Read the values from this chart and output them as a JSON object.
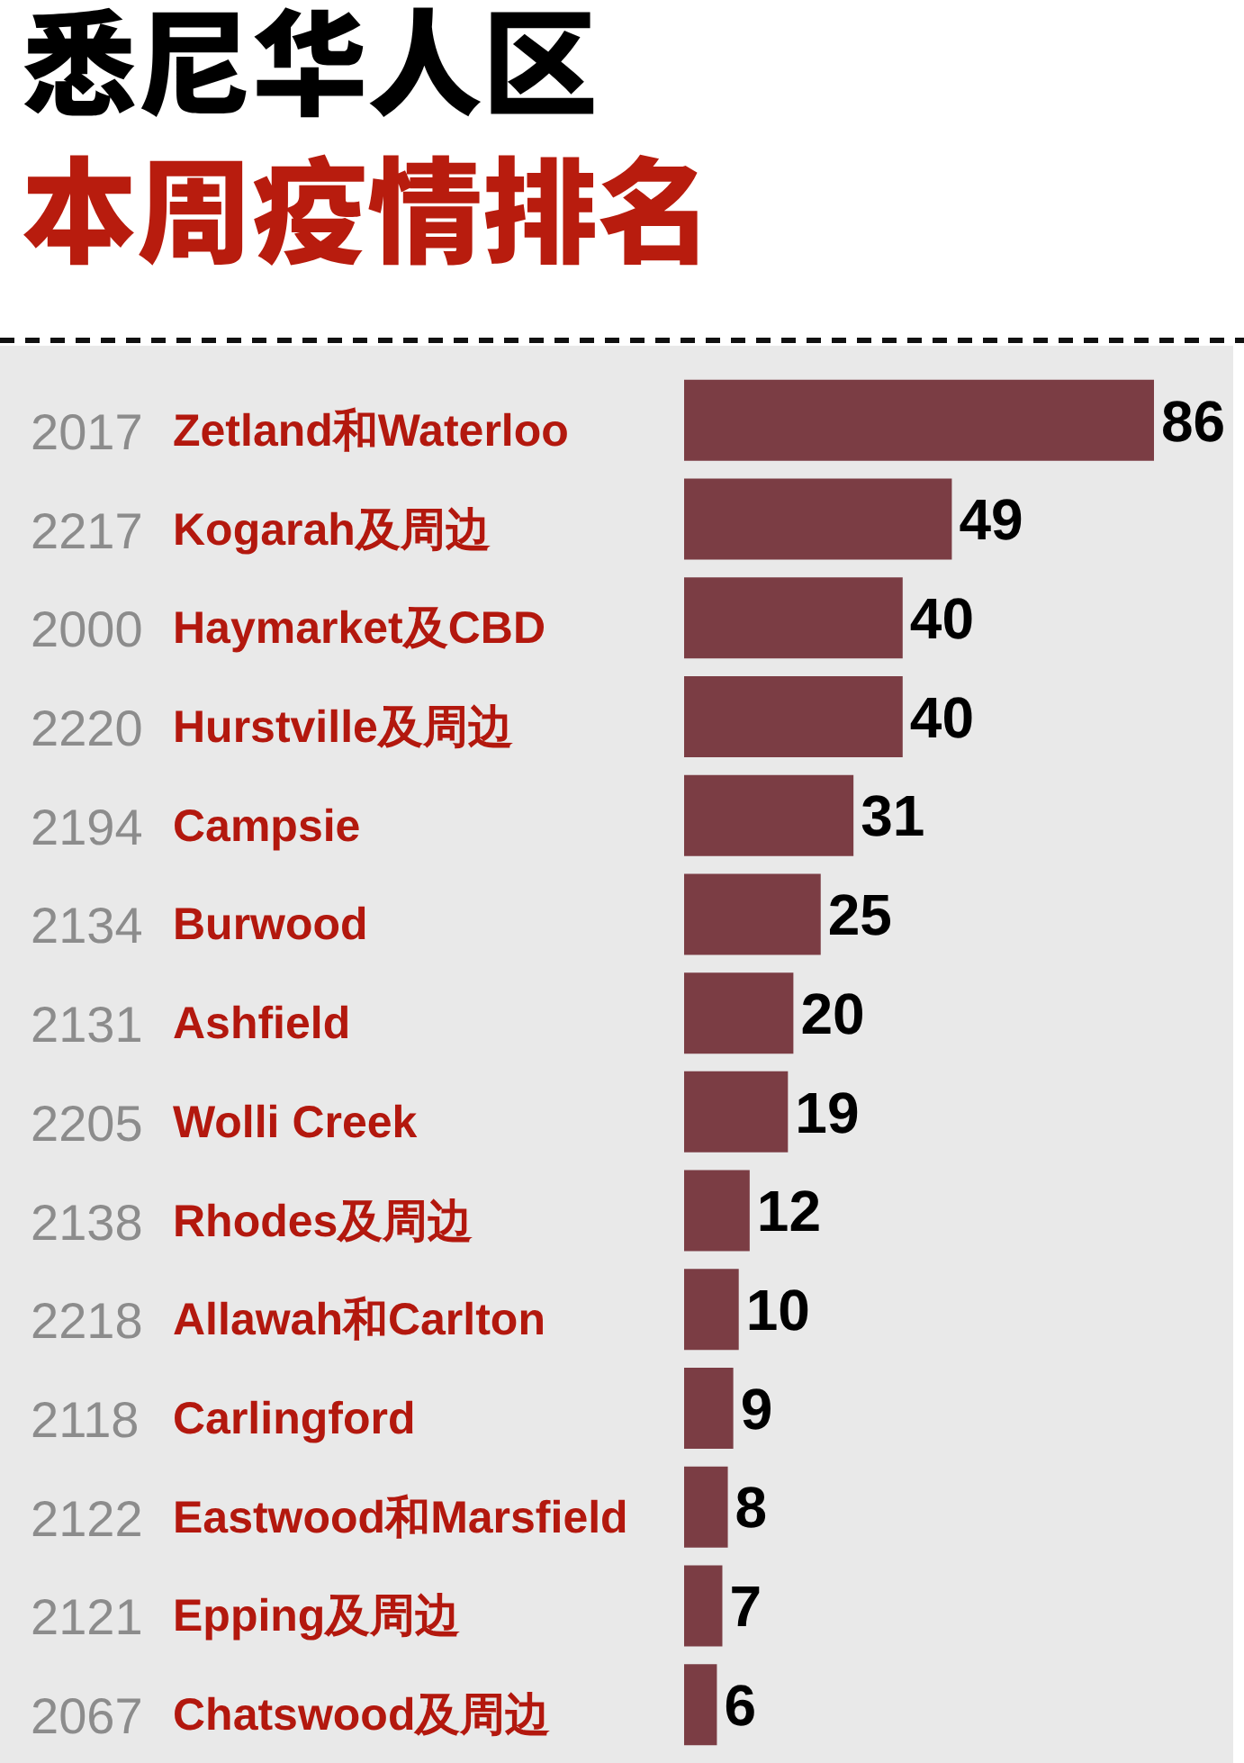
{
  "chart_data": {
    "type": "bar",
    "orientation": "horizontal",
    "title": "悉尼华人区",
    "subtitle": "本周疫情排名",
    "categories": [
      "2017 Zetland和Waterloo",
      "2217 Kogarah及周边",
      "2000 Haymarket及CBD",
      "2220 Hurstville及周边",
      "2194 Campsie",
      "2134 Burwood",
      "2131 Ashfield",
      "2205 Wolli Creek",
      "2138 Rhodes及周边",
      "2218 Allawah和Carlton",
      "2118 Carlingford",
      "2122 Eastwood和Marsfield",
      "2121 Epping及周边",
      "2067 Chatswood及周边"
    ],
    "values": [
      86,
      49,
      40,
      40,
      31,
      25,
      20,
      19,
      12,
      10,
      9,
      8,
      7,
      6
    ],
    "color": "#7b3d44",
    "data_labels": true
  }
}
